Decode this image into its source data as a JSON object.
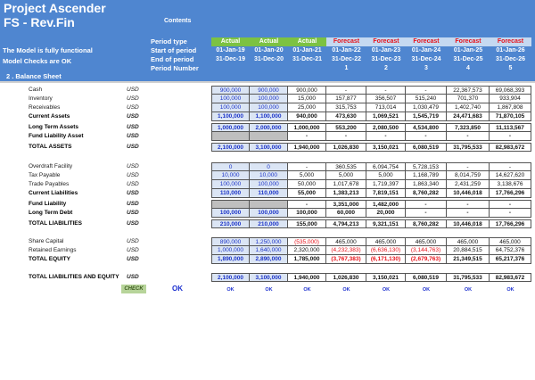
{
  "header": {
    "title": "Project Ascender",
    "subtitle": "FS - Rev.Fin",
    "contents_link": "Contents",
    "status_line1": "The Model is fully functional",
    "status_line2": "Model Checks are OK",
    "section": "2 . Balance Sheet",
    "period_labels": {
      "type": "Period type",
      "start": "Start of period",
      "end": "End of period",
      "number": "Period Number"
    }
  },
  "colors": {
    "banner": "#4f86d0",
    "actual_bg": "#7cc242",
    "forecast_bg": "#c5d9f1",
    "forecast_text": "#e8121a",
    "input_bg": "#dbe5f4",
    "input_text": "#1d35c8",
    "negative": "#e8121a"
  },
  "columns": [
    {
      "type": "Actual",
      "start": "01-Jan-19",
      "end": "31-Dec-19",
      "number": ""
    },
    {
      "type": "Actual",
      "start": "01-Jan-20",
      "end": "31-Dec-20",
      "number": ""
    },
    {
      "type": "Actual",
      "start": "01-Jan-21",
      "end": "31-Dec-21",
      "number": ""
    },
    {
      "type": "Forecast",
      "start": "01-Jan-22",
      "end": "31-Dec-22",
      "number": "1"
    },
    {
      "type": "Forecast",
      "start": "01-Jan-23",
      "end": "31-Dec-23",
      "number": "2"
    },
    {
      "type": "Forecast",
      "start": "01-Jan-24",
      "end": "31-Dec-24",
      "number": "3"
    },
    {
      "type": "Forecast",
      "start": "01-Jan-25",
      "end": "31-Dec-25",
      "number": "4"
    },
    {
      "type": "Forecast",
      "start": "01-Jan-26",
      "end": "31-Dec-26",
      "number": "5"
    }
  ],
  "rows": [
    {
      "label": "Cash",
      "unit": "USD",
      "values": [
        "900,000",
        "900,000",
        "900,000",
        "-",
        "-",
        "-",
        "22,367,573",
        "69,068,393"
      ]
    },
    {
      "label": "Inventory",
      "unit": "USD",
      "values": [
        "100,000",
        "100,000",
        "15,000",
        "157,877",
        "356,507",
        "515,240",
        "701,370",
        "933,904"
      ]
    },
    {
      "label": "Receivables",
      "unit": "USD",
      "values": [
        "100,000",
        "100,000",
        "25,000",
        "315,753",
        "713,014",
        "1,030,479",
        "1,402,740",
        "1,867,808"
      ]
    },
    {
      "label": "Current Assets",
      "unit": "USD",
      "values": [
        "1,100,000",
        "1,100,000",
        "940,000",
        "473,630",
        "1,069,521",
        "1,545,719",
        "24,471,683",
        "71,870,105"
      ]
    },
    {
      "label": "Long Term Assets",
      "unit": "USD",
      "values": [
        "1,000,000",
        "2,000,000",
        "1,000,000",
        "553,200",
        "2,080,500",
        "4,534,800",
        "7,323,850",
        "11,113,567"
      ]
    },
    {
      "label": "Fund Liability Asset",
      "unit": "USD",
      "values": [
        "",
        "",
        "-",
        "-",
        "-",
        "-",
        "-",
        "-"
      ]
    },
    {
      "label": "TOTAL ASSETS",
      "unit": "USD",
      "values": [
        "2,100,000",
        "3,100,000",
        "1,940,000",
        "1,026,830",
        "3,150,021",
        "6,080,519",
        "31,795,533",
        "82,983,672"
      ]
    },
    {
      "label": "Overdraft Facility",
      "unit": "USD",
      "values": [
        "0",
        "0",
        "-",
        "360,535",
        "6,094,754",
        "5,728,153",
        "-",
        "-"
      ]
    },
    {
      "label": "Tax Payable",
      "unit": "USD",
      "values": [
        "10,000",
        "10,000",
        "5,000",
        "5,000",
        "5,000",
        "1,168,789",
        "8,014,759",
        "14,627,620"
      ]
    },
    {
      "label": "Trade Payables",
      "unit": "USD",
      "values": [
        "100,000",
        "100,000",
        "50,000",
        "1,017,678",
        "1,719,397",
        "1,863,340",
        "2,431,259",
        "3,138,676"
      ]
    },
    {
      "label": "Current Liabilities",
      "unit": "USD",
      "values": [
        "110,000",
        "110,000",
        "55,000",
        "1,383,213",
        "7,819,151",
        "8,760,282",
        "10,446,018",
        "17,766,296"
      ]
    },
    {
      "label": "Fund Liability",
      "unit": "USD",
      "values": [
        "",
        "",
        "-",
        "3,351,000",
        "1,482,000",
        "-",
        "-",
        "-"
      ]
    },
    {
      "label": "Long Term Debt",
      "unit": "USD",
      "values": [
        "100,000",
        "100,000",
        "100,000",
        "60,000",
        "20,000",
        "-",
        "-",
        "-"
      ]
    },
    {
      "label": "TOTAL LIABILITIES",
      "unit": "USD",
      "values": [
        "210,000",
        "210,000",
        "155,000",
        "4,794,213",
        "9,321,151",
        "8,760,282",
        "10,446,018",
        "17,766,296"
      ]
    },
    {
      "label": "Share Capital",
      "unit": "USD",
      "values": [
        "890,000",
        "1,250,000",
        "(535,000)",
        "465,000",
        "465,000",
        "465,000",
        "465,000",
        "465,000"
      ]
    },
    {
      "label": "Retained Earnings",
      "unit": "USD",
      "values": [
        "1,000,000",
        "1,640,000",
        "2,320,000",
        "(4,232,383)",
        "(6,636,130)",
        "(3,144,763)",
        "20,884,515",
        "64,752,376"
      ]
    },
    {
      "label": "TOTAL EQUITY",
      "unit": "USD",
      "values": [
        "1,890,000",
        "2,890,000",
        "1,785,000",
        "(3,767,383)",
        "(6,171,130)",
        "(2,679,763)",
        "21,349,515",
        "65,217,376"
      ]
    },
    {
      "label": "TOTAL LIABILITIES AND EQUITY",
      "unit": "USD",
      "values": [
        "2,100,000",
        "3,100,000",
        "1,940,000",
        "1,026,830",
        "3,150,021",
        "6,080,519",
        "31,795,533",
        "82,983,672"
      ]
    }
  ],
  "check": {
    "label": "CHECK",
    "overall": "OK",
    "values": [
      "OK",
      "OK",
      "OK",
      "OK",
      "OK",
      "OK",
      "OK",
      "OK"
    ]
  }
}
